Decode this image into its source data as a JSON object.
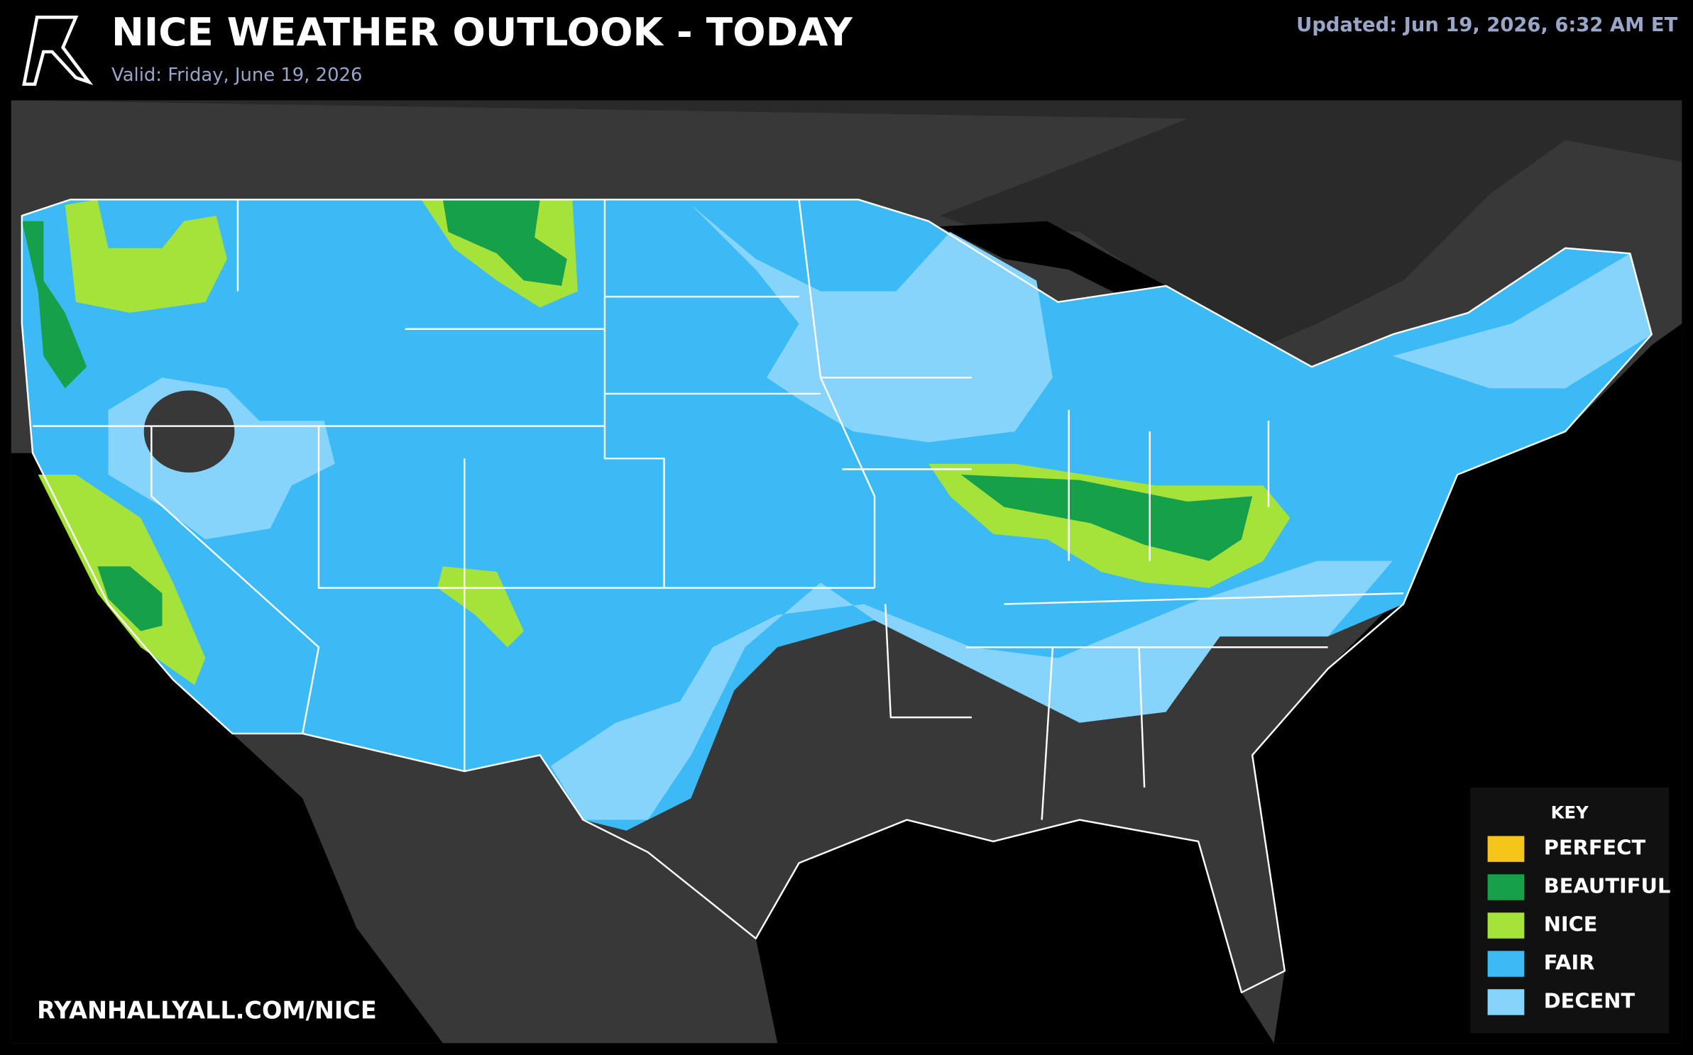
{
  "header": {
    "title": "NICE WEATHER OUTLOOK - TODAY",
    "valid": "Valid: Friday, June 19, 2026",
    "updated": "Updated: Jun 19, 2026, 6:32 AM ET"
  },
  "footer": {
    "url": "RYANHALLYALL.COM/NICE"
  },
  "legend": {
    "title": "KEY",
    "items": [
      {
        "label": "PERFECT",
        "color": "#f5c518"
      },
      {
        "label": "BEAUTIFUL",
        "color": "#17a04a"
      },
      {
        "label": "NICE",
        "color": "#a6e33a"
      },
      {
        "label": "FAIR",
        "color": "#3bbaf6"
      },
      {
        "label": "DECENT",
        "color": "#86d3fb"
      }
    ]
  }
}
